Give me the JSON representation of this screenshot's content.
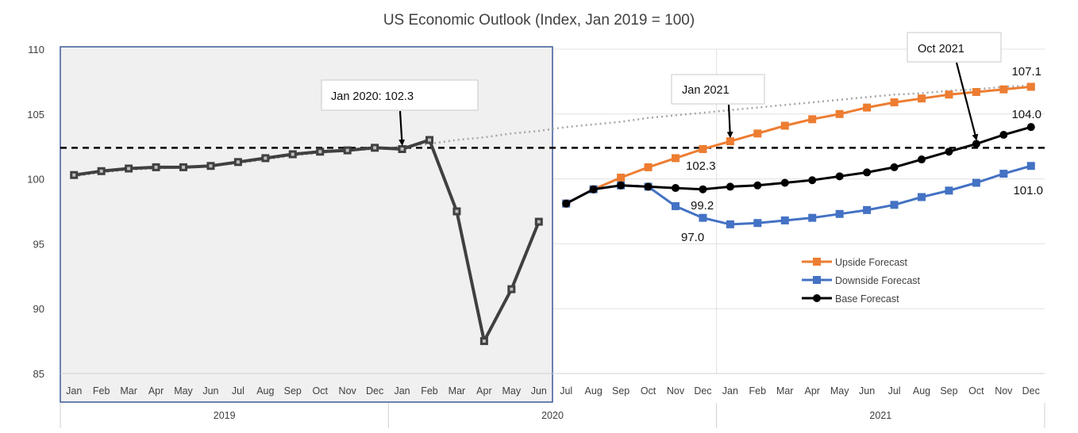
{
  "chart_data": {
    "type": "line",
    "title": "US Economic Outlook (Index, Jan 2019 = 100)",
    "xlabel": "",
    "ylabel": "",
    "ylim": [
      85,
      110
    ],
    "yticks": [
      85,
      90,
      95,
      100,
      105,
      110
    ],
    "grid": true,
    "legend_position": "right",
    "months": [
      "Jan",
      "Feb",
      "Mar",
      "Apr",
      "May",
      "Jun",
      "Jul",
      "Aug",
      "Sep",
      "Oct",
      "Nov",
      "Dec",
      "Jan",
      "Feb",
      "Mar",
      "Apr",
      "May",
      "Jun",
      "Jul",
      "Aug",
      "Sep",
      "Oct",
      "Nov",
      "Dec",
      "Jan",
      "Feb",
      "Mar",
      "Apr",
      "May",
      "Jun",
      "Jul",
      "Aug",
      "Sep",
      "Oct",
      "Nov",
      "Dec"
    ],
    "years": [
      {
        "label": "2019",
        "start": 0,
        "end": 11
      },
      {
        "label": "2020",
        "start": 12,
        "end": 23
      },
      {
        "label": "2021",
        "start": 24,
        "end": 35
      }
    ],
    "reference_line": 102.4,
    "shaded_region": {
      "start": 0,
      "end": 17
    },
    "series": [
      {
        "key": "history",
        "color": "#404040",
        "start": 0,
        "values": [
          100.3,
          100.6,
          100.8,
          100.9,
          100.9,
          101.0,
          101.3,
          101.6,
          101.9,
          102.1,
          102.2,
          102.4,
          102.3,
          103.0,
          97.5,
          87.5,
          91.5,
          96.7
        ]
      },
      {
        "key": "trend",
        "color": "#a6a6a6",
        "start": 0,
        "values": [
          100.2,
          100.5,
          100.7,
          100.8,
          100.9,
          101.0,
          101.2,
          101.5,
          101.8,
          102.0,
          102.2,
          102.3,
          102.5,
          102.7,
          103.0,
          103.2,
          103.5,
          103.7,
          104.0,
          104.2,
          104.4,
          104.7,
          104.9,
          105.1,
          105.3,
          105.5,
          105.7,
          105.9,
          106.1,
          106.3,
          106.5,
          106.6,
          106.8,
          106.9,
          107.1,
          107.2
        ]
      },
      {
        "key": "upside",
        "name": "Upside Forecast",
        "color": "#ed7d31",
        "start": 18,
        "values": [
          98.1,
          99.2,
          100.1,
          100.9,
          101.6,
          102.3,
          102.9,
          103.5,
          104.1,
          104.6,
          105.0,
          105.5,
          105.9,
          106.2,
          106.5,
          106.7,
          106.9,
          107.1
        ]
      },
      {
        "key": "downside",
        "name": "Downside Forecast",
        "color": "#4472c4",
        "start": 18,
        "values": [
          98.1,
          99.2,
          99.5,
          99.4,
          97.9,
          97.0,
          96.5,
          96.6,
          96.8,
          97.0,
          97.3,
          97.6,
          98.0,
          98.6,
          99.1,
          99.7,
          100.4,
          101.0
        ]
      },
      {
        "key": "base",
        "name": "Base Forecast",
        "color": "#000000",
        "start": 18,
        "values": [
          98.1,
          99.2,
          99.5,
          99.4,
          99.3,
          99.2,
          99.4,
          99.5,
          99.7,
          99.9,
          100.2,
          100.5,
          100.9,
          101.5,
          102.1,
          102.7,
          103.4,
          104.0
        ]
      }
    ],
    "annotations": [
      {
        "text": "Jan 2020: 102.3",
        "target_index": 12,
        "target_value": 102.3
      },
      {
        "text": "Jan 2021",
        "target_index": 24,
        "target_value": 102.9
      },
      {
        "text": "Oct 2021",
        "target_index": 33,
        "target_value": 102.7
      }
    ],
    "value_labels": [
      "107.1",
      "104.0",
      "102.3",
      "99.2",
      "97.0",
      "101.0"
    ]
  }
}
